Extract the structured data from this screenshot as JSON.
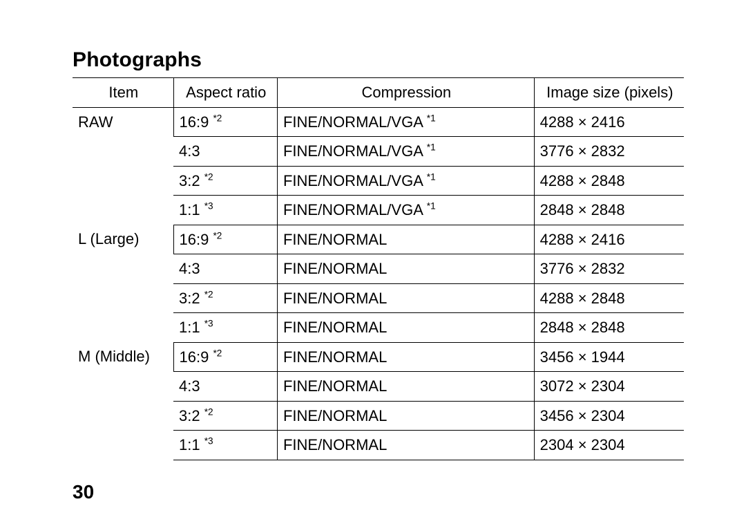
{
  "heading": "Photographs",
  "page_number": "30",
  "table": {
    "columns": [
      "Item",
      "Aspect ratio",
      "Compression",
      "Image size (pixels)"
    ],
    "groups": [
      {
        "item": "RAW",
        "rows": [
          {
            "aspect": "16:9",
            "aspect_sup": "*2",
            "compression": "FINE/NORMAL/VGA",
            "compression_sup": "*1",
            "size": "4288 × 2416"
          },
          {
            "aspect": "4:3",
            "aspect_sup": "",
            "compression": "FINE/NORMAL/VGA",
            "compression_sup": "*1",
            "size": "3776 × 2832"
          },
          {
            "aspect": "3:2",
            "aspect_sup": "*2",
            "compression": "FINE/NORMAL/VGA",
            "compression_sup": "*1",
            "size": "4288 × 2848"
          },
          {
            "aspect": "1:1",
            "aspect_sup": "*3",
            "compression": "FINE/NORMAL/VGA",
            "compression_sup": "*1",
            "size": "2848 × 2848"
          }
        ]
      },
      {
        "item": "L (Large)",
        "rows": [
          {
            "aspect": "16:9",
            "aspect_sup": "*2",
            "compression": "FINE/NORMAL",
            "compression_sup": "",
            "size": "4288 × 2416"
          },
          {
            "aspect": "4:3",
            "aspect_sup": "",
            "compression": "FINE/NORMAL",
            "compression_sup": "",
            "size": "3776 × 2832"
          },
          {
            "aspect": "3:2",
            "aspect_sup": "*2",
            "compression": "FINE/NORMAL",
            "compression_sup": "",
            "size": "4288 × 2848"
          },
          {
            "aspect": "1:1",
            "aspect_sup": "*3",
            "compression": "FINE/NORMAL",
            "compression_sup": "",
            "size": "2848 × 2848"
          }
        ]
      },
      {
        "item": "M (Middle)",
        "rows": [
          {
            "aspect": "16:9",
            "aspect_sup": "*2",
            "compression": "FINE/NORMAL",
            "compression_sup": "",
            "size": "3456 × 1944"
          },
          {
            "aspect": "4:3",
            "aspect_sup": "",
            "compression": "FINE/NORMAL",
            "compression_sup": "",
            "size": "3072 × 2304"
          },
          {
            "aspect": "3:2",
            "aspect_sup": "*2",
            "compression": "FINE/NORMAL",
            "compression_sup": "",
            "size": "3456 × 2304"
          },
          {
            "aspect": "1:1",
            "aspect_sup": "*3",
            "compression": "FINE/NORMAL",
            "compression_sup": "",
            "size": "2304 × 2304"
          }
        ]
      }
    ]
  }
}
